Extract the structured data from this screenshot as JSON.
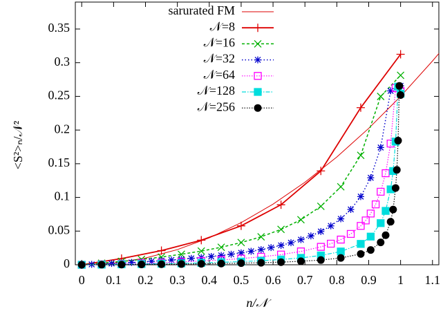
{
  "chart_data": {
    "type": "line",
    "x_label": "n/𝒩",
    "y_label": "<S²>ₙ/𝒩²",
    "xlim": [
      -0.02,
      1.12
    ],
    "ylim": [
      0,
      0.39
    ],
    "xticks": [
      0,
      0.1,
      0.2,
      0.3,
      0.4,
      0.5,
      0.6,
      0.7,
      0.8,
      0.9,
      1,
      1.1
    ],
    "yticks": [
      0,
      0.05,
      0.1,
      0.15,
      0.2,
      0.25,
      0.3,
      0.35
    ],
    "legend": "top-left",
    "series": [
      {
        "name": "sarurated FM",
        "color": "#dd0000",
        "dash": "none",
        "width": 1,
        "x": [
          0,
          0.1,
          0.2,
          0.3,
          0.4,
          0.5,
          0.6,
          0.7,
          0.8,
          0.9,
          1,
          1.1,
          1.12
        ],
        "values": [
          0,
          0.0025,
          0.01,
          0.0225,
          0.04,
          0.0625,
          0.09,
          0.1225,
          0.16,
          0.2025,
          0.25,
          0.3025,
          0.3136
        ]
      },
      {
        "name": "𝒩=8",
        "color": "#dd0000",
        "dash": "none",
        "width": 1.8,
        "marker": "plus",
        "x": [
          0,
          0.125,
          0.25,
          0.375,
          0.5,
          0.625,
          0.75,
          0.875,
          1
        ],
        "values": [
          0,
          0.0092,
          0.021,
          0.0365,
          0.0578,
          0.0891,
          0.1393,
          0.2332,
          0.3125
        ]
      },
      {
        "name": "𝒩=16",
        "color": "#00b000",
        "dash": "4,3",
        "width": 1.5,
        "marker": "cross",
        "x": [
          0,
          0.0625,
          0.125,
          0.1875,
          0.25,
          0.3125,
          0.375,
          0.4375,
          0.5,
          0.5625,
          0.625,
          0.6875,
          0.75,
          0.8125,
          0.875,
          0.9375,
          1
        ],
        "values": [
          0,
          0.0024,
          0.005,
          0.008,
          0.0115,
          0.0156,
          0.0203,
          0.026,
          0.033,
          0.0415,
          0.0525,
          0.0669,
          0.0868,
          0.1158,
          0.1625,
          0.2499,
          0.2813
        ]
      },
      {
        "name": "𝒩=32",
        "color": "#0000cc",
        "dash": "1.5,3",
        "width": 1.5,
        "marker": "star",
        "x": [
          0,
          0.03125,
          0.0625,
          0.09375,
          0.125,
          0.15625,
          0.1875,
          0.21875,
          0.25,
          0.28125,
          0.3125,
          0.34375,
          0.375,
          0.40625,
          0.4375,
          0.46875,
          0.5,
          0.53125,
          0.5625,
          0.59375,
          0.625,
          0.65625,
          0.6875,
          0.71875,
          0.75,
          0.78125,
          0.8125,
          0.84375,
          0.875,
          0.90625,
          0.9375,
          0.96875,
          1
        ],
        "values": [
          0,
          0.0006,
          0.0012,
          0.0019,
          0.0026,
          0.0034,
          0.0042,
          0.0051,
          0.0061,
          0.0071,
          0.0082,
          0.0095,
          0.0108,
          0.0123,
          0.0139,
          0.0157,
          0.0177,
          0.02,
          0.0225,
          0.0255,
          0.0288,
          0.0327,
          0.0373,
          0.0428,
          0.0494,
          0.0577,
          0.0682,
          0.0821,
          0.1012,
          0.1292,
          0.1741,
          0.2582,
          0.2656
        ]
      },
      {
        "name": "𝒩=64",
        "color": "#ff00ff",
        "dash": "1.5,2",
        "width": 1.2,
        "marker": "square-open",
        "x": [
          0,
          0.0625,
          0.125,
          0.1875,
          0.25,
          0.3125,
          0.375,
          0.4375,
          0.5,
          0.5625,
          0.625,
          0.6875,
          0.75,
          0.78125,
          0.8125,
          0.84375,
          0.875,
          0.890625,
          0.90625,
          0.921875,
          0.9375,
          0.953125,
          0.96875,
          0.984375,
          1
        ],
        "values": [
          0,
          0.0006,
          0.0013,
          0.0022,
          0.0031,
          0.0042,
          0.0056,
          0.0072,
          0.0092,
          0.0118,
          0.0151,
          0.0198,
          0.0266,
          0.0313,
          0.0374,
          0.0458,
          0.0577,
          0.0658,
          0.0761,
          0.0897,
          0.1084,
          0.1359,
          0.18,
          0.2624,
          0.2578
        ]
      },
      {
        "name": "𝒩=128",
        "color": "#00dddd",
        "dash": "6,2,1.5,2",
        "width": 1.2,
        "marker": "square",
        "x": [
          0,
          0.0625,
          0.125,
          0.1875,
          0.25,
          0.3125,
          0.375,
          0.4375,
          0.5,
          0.5625,
          0.625,
          0.6875,
          0.75,
          0.8125,
          0.875,
          0.90625,
          0.9375,
          0.953125,
          0.96875,
          0.9765625,
          0.984375,
          0.9921875,
          1
        ],
        "values": [
          0,
          0.0003,
          0.0007,
          0.0011,
          0.0016,
          0.0021,
          0.0028,
          0.0037,
          0.0047,
          0.006,
          0.0078,
          0.0102,
          0.0138,
          0.0197,
          0.031,
          0.0418,
          0.0618,
          0.08,
          0.112,
          0.1392,
          0.1829,
          0.2645,
          0.2539
        ]
      },
      {
        "name": "𝒩=256",
        "color": "#000000",
        "dash": "1.5,2",
        "width": 1.2,
        "marker": "circle",
        "x": [
          0,
          0.0625,
          0.125,
          0.1875,
          0.25,
          0.3125,
          0.375,
          0.4375,
          0.5,
          0.5625,
          0.625,
          0.6875,
          0.75,
          0.8125,
          0.875,
          0.90625,
          0.9375,
          0.953125,
          0.96875,
          0.9765625,
          0.984375,
          0.98828125,
          0.9921875,
          0.99609375,
          1
        ],
        "values": [
          0,
          0.0002,
          0.0003,
          0.0005,
          0.0008,
          0.0011,
          0.0014,
          0.0018,
          0.0024,
          0.003,
          0.0039,
          0.0052,
          0.007,
          0.0101,
          0.0161,
          0.022,
          0.0332,
          0.0439,
          0.0639,
          0.082,
          0.1139,
          0.1409,
          0.1843,
          0.2655,
          0.252
        ]
      }
    ]
  }
}
